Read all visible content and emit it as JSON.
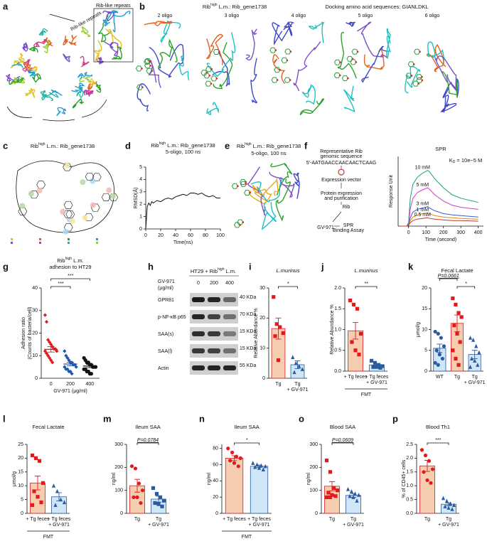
{
  "panels": {
    "a": {
      "label": "a",
      "annotations": [
        "Rib-like repeats",
        "Rib-like repeats"
      ]
    },
    "b": {
      "label": "b",
      "title": {
        "base": "Rib",
        "sup": "high",
        "rest": " L.m.: Rib_gene1738"
      },
      "subtitle": "Docking amino acid sequences: GIANLDKL",
      "structures": [
        "2 oligo",
        "3 oligo",
        "4 oligo",
        "5 oligo",
        "6 oligo"
      ]
    },
    "c": {
      "label": "c",
      "title": {
        "base": "Rib",
        "sup": "high",
        "rest": " L.m.: Rib_gene1738"
      }
    },
    "e": {
      "label": "e",
      "title": {
        "base": "Rib",
        "sup": "high",
        "rest": " L.m.: Rib_gene1738"
      },
      "subtitle": "5-oligo, 100 ns"
    },
    "f": {
      "label": "f",
      "steps": [
        "Representative Rib",
        "genomic sequence",
        "5'-AATGAACCAACAACTCAAG",
        "Expression vector",
        "Protein expression",
        "and purification",
        "Rib",
        "GV-971",
        "SPR",
        "Binding Assay"
      ]
    },
    "h": {
      "label": "h",
      "treatment": "GV-971",
      "unit": "(μg/ml)",
      "header": {
        "base": "HT29 + Rib",
        "sup": "high",
        "rest": " L.m."
      },
      "lanes": [
        "0",
        "200",
        "400"
      ],
      "bands": [
        "GPR81",
        "p-NF-κB p65",
        "SAA(s)",
        "SAA(l)",
        "Actin"
      ],
      "sizes": [
        "40 KDa",
        "70 KDa",
        "15 KDa",
        "15 KDa",
        "55 KDa"
      ]
    }
  },
  "chart_data": [
    {
      "type": "line",
      "label": "d",
      "title": {
        "base": "Rib",
        "sup": "high",
        "rest": " L.m.: Rib_gene1738"
      },
      "subtitle": "5-oligo, 100 ns",
      "x": [
        0,
        2,
        4,
        6,
        8,
        10,
        15,
        20,
        25,
        30,
        35,
        40,
        45,
        50,
        55,
        60,
        65,
        70,
        75,
        80,
        85,
        90,
        95,
        100
      ],
      "series": [
        {
          "color": "#111111",
          "values": [
            0,
            1.8,
            2.1,
            1.9,
            2.2,
            2.1,
            2.3,
            2.2,
            2.4,
            2.5,
            2.4,
            2.6,
            2.7,
            2.8,
            2.7,
            2.9,
            2.9,
            2.8,
            2.9,
            2.7,
            2.6,
            2.7,
            2.5,
            2.5
          ]
        }
      ],
      "xlim": [
        0,
        100
      ],
      "xticks": [
        0,
        20,
        40,
        60,
        80,
        100
      ],
      "ylim": [
        0,
        5
      ],
      "yticks": [
        0,
        1,
        2,
        3,
        4,
        5
      ],
      "xlabel": "Time(ns)",
      "ylabel": "RMSD(Å)"
    },
    {
      "type": "line",
      "title": "SPR",
      "kd": {
        "base": "K",
        "sub": "D",
        "rest": " = 10e−5 M"
      },
      "x": [
        -50,
        -10,
        0,
        10,
        25,
        50,
        80,
        110,
        120,
        150,
        200,
        250,
        300,
        400
      ],
      "series": [
        {
          "name": "10 mM",
          "color": "#1b9e77",
          "values": [
            0,
            0,
            5,
            40,
            60,
            70,
            76,
            80,
            78,
            68,
            55,
            45,
            40,
            34
          ]
        },
        {
          "name": "5 mM",
          "color": "#d03fbf",
          "values": [
            0,
            0,
            3,
            25,
            40,
            48,
            52,
            55,
            53,
            45,
            36,
            30,
            27,
            24
          ]
        },
        {
          "name": "3 mM",
          "color": "#3b5bdb",
          "values": [
            0,
            0,
            2,
            12,
            20,
            24,
            26,
            28,
            26,
            22,
            18,
            16,
            15,
            13
          ]
        },
        {
          "name": "1 mM",
          "color": "#e08a00",
          "values": [
            0,
            0,
            1,
            8,
            13,
            16,
            18,
            19,
            18,
            15,
            13,
            12,
            11,
            10
          ]
        },
        {
          "name": "0.5 mM",
          "color": "#c0392b",
          "values": [
            0,
            0,
            1,
            5,
            8,
            10,
            11,
            12,
            11,
            10,
            9,
            8,
            8,
            7
          ]
        }
      ],
      "xlim": [
        -60,
        430
      ],
      "xticks": [
        0,
        100,
        200,
        300,
        400
      ],
      "ylim": [
        0,
        100
      ],
      "xlabel": "Time (second)",
      "ylabel": "Response Unit"
    },
    {
      "type": "dot",
      "label": "g",
      "title": {
        "base": "Rib",
        "sup": "high",
        "rest": " L.m."
      },
      "subtitle": "adhesion to HT29",
      "categories": [
        "0",
        "200",
        "400"
      ],
      "values": [
        12.8,
        6.3,
        5.4
      ],
      "errors": [
        1.2,
        0.8,
        0.7
      ],
      "points": [
        [
          28,
          25,
          17,
          16,
          15,
          14,
          13,
          13,
          12,
          12,
          11,
          10,
          9,
          8,
          7
        ],
        [
          12,
          10,
          9,
          8,
          7,
          7,
          6,
          6,
          5,
          5,
          4,
          4,
          3,
          3,
          2
        ],
        [
          9,
          8,
          7,
          7,
          6,
          6,
          5,
          5,
          5,
          4,
          4,
          3,
          3,
          2,
          2
        ]
      ],
      "point_colors": [
        "#e31a1c",
        "#2255aa",
        "#111111"
      ],
      "markers": [
        "diamond",
        "diamond",
        "circle"
      ],
      "ylim": [
        0,
        40
      ],
      "yticks": [
        0,
        10,
        20,
        30,
        40
      ],
      "xlabel": "GV-971 (μg/ml)",
      "ylabel": [
        "Adhesion ratio",
        "(Counts of bacteria/cell)"
      ],
      "significance": [
        "***",
        "***"
      ]
    },
    {
      "type": "bar",
      "label": "i",
      "title": "L.murinus",
      "ylabel": "Relative Abundance %",
      "categories": [
        [
          "Tg"
        ],
        [
          "Tg",
          "+ GV-971"
        ]
      ],
      "values": [
        16.5,
        4.5
      ],
      "errors": [
        3.5,
        1.3
      ],
      "points": [
        [
          27,
          18,
          17,
          15,
          14,
          6
        ],
        [
          7,
          5,
          4,
          3,
          2
        ]
      ],
      "colors": [
        "#f6cdb0",
        "#cfe6f7"
      ],
      "point_colors": [
        "#e31a1c",
        "#2c5aa0"
      ],
      "markers": [
        "square",
        "triangle"
      ],
      "ylim": [
        0,
        30
      ],
      "yticks": [
        0,
        10,
        20,
        30
      ],
      "significance": "*"
    },
    {
      "type": "bar",
      "label": "j",
      "title": "L.murinus",
      "ylabel": "Relative Abundance %",
      "categories": [
        [
          "+ Tg feces"
        ],
        [
          "+ Tg feces",
          "+ GV-971"
        ]
      ],
      "group_label": "FMT",
      "values": [
        0.97,
        0.15
      ],
      "errors": [
        0.2,
        0.03
      ],
      "points": [
        [
          1.7,
          1.6,
          1.5,
          0.9,
          0.7,
          0.5,
          0.4
        ],
        [
          0.25,
          0.2,
          0.15,
          0.12,
          0.1,
          0.1,
          0.08
        ]
      ],
      "colors": [
        "#f6cdb0",
        "#cfe6f7"
      ],
      "point_colors": [
        "#e31a1c",
        "#2c5aa0"
      ],
      "markers": [
        "square",
        "square"
      ],
      "ylim": [
        0,
        2
      ],
      "yticks": [
        {
          "value": 0,
          "label": "0.0"
        },
        0.5,
        {
          "value": 1,
          "label": "1.0"
        },
        1.5,
        {
          "value": 2,
          "label": "2.0"
        }
      ],
      "significance": "**"
    },
    {
      "type": "bar",
      "label": "k",
      "title": "Fecal Lactate",
      "ylabel": "μmol/g",
      "categories": [
        [
          "WT"
        ],
        [
          "Tg"
        ],
        [
          "Tg",
          "+ GV-971"
        ]
      ],
      "values": [
        5.5,
        11.5,
        4.0
      ],
      "errors": [
        1.0,
        2.0,
        1.0
      ],
      "points": [
        [
          9.5,
          9,
          8,
          6,
          5,
          4,
          3,
          2,
          1.5
        ],
        [
          17.5,
          16,
          14,
          13,
          11,
          9,
          7,
          5,
          3,
          1.5
        ],
        [
          8,
          7.5,
          6,
          4.5,
          3,
          2.5,
          1.5,
          1
        ]
      ],
      "colors": [
        "#cfe6f7",
        "#f6cdb0",
        "#cfe6f7"
      ],
      "point_colors": [
        "#2c5aa0",
        "#e31a1c",
        "#2c5aa0"
      ],
      "markers": [
        "circle",
        "square",
        "triangle"
      ],
      "ylim": [
        0,
        20
      ],
      "yticks": [
        0,
        5,
        10,
        15,
        20
      ],
      "significance": [
        "P=0.0661",
        "*"
      ]
    },
    {
      "type": "bar",
      "label": "l",
      "title": "Fecal Lactate",
      "ylabel": "μmol/g",
      "categories": [
        [
          "+ Tg feces"
        ],
        [
          "+ Tg feces",
          "+ GV-971"
        ]
      ],
      "group_label": "FMT",
      "values": [
        11,
        6
      ],
      "errors": [
        2.5,
        1.5
      ],
      "points": [
        [
          21,
          20,
          19,
          11,
          8,
          6,
          4,
          3
        ],
        [
          10,
          8,
          5,
          4,
          3
        ]
      ],
      "colors": [
        "#f6cdb0",
        "#cfe6f7"
      ],
      "point_colors": [
        "#e31a1c",
        "#2c5aa0"
      ],
      "markers": [
        "square",
        "triangle"
      ],
      "ylim": [
        0,
        25
      ],
      "yticks": [
        0,
        5,
        10,
        15,
        20,
        25
      ]
    },
    {
      "type": "bar",
      "label": "m",
      "title": "Ileum SAA",
      "ylabel": "ng/ml",
      "categories": [
        [
          "Tg"
        ],
        [
          "Tg",
          "+ GV-971"
        ]
      ],
      "values": [
        120,
        62
      ],
      "errors": [
        28,
        13
      ],
      "points": [
        [
          205,
          195,
          130,
          100,
          70,
          70,
          45
        ],
        [
          110,
          85,
          70,
          55,
          45,
          40,
          30
        ]
      ],
      "colors": [
        "#f6cdb0",
        "#cfe6f7"
      ],
      "point_colors": [
        "#e31a1c",
        "#2c5aa0"
      ],
      "markers": [
        "circle",
        "square"
      ],
      "ylim": [
        0,
        300
      ],
      "yticks": [
        0,
        100,
        200,
        300
      ],
      "significance": "P=0.0784"
    },
    {
      "type": "bar",
      "label": "n",
      "title": "Ileum SAA",
      "ylabel": "ng/ml",
      "categories": [
        [
          "+ Tg feces"
        ],
        [
          "+ Tg feces",
          "+ GV-971"
        ]
      ],
      "group_label": "FMT",
      "values": [
        68,
        58
      ],
      "errors": [
        3,
        1.5
      ],
      "points": [
        [
          80,
          75,
          70,
          68,
          65,
          62,
          58
        ],
        [
          62,
          60,
          59,
          58,
          57,
          56,
          54
        ]
      ],
      "colors": [
        "#f6cdb0",
        "#cfe6f7"
      ],
      "point_colors": [
        "#e31a1c",
        "#2c5aa0"
      ],
      "markers": [
        "circle",
        "triangle"
      ],
      "ylim": [
        0,
        85
      ],
      "yticks": [
        0,
        20,
        40,
        60,
        80
      ],
      "significance": "*"
    },
    {
      "type": "bar",
      "label": "o",
      "title": "Blood SAA",
      "ylabel": "ng/ml",
      "categories": [
        [
          "Tg"
        ],
        [
          "Tg",
          "+ GV-971"
        ]
      ],
      "values": [
        118,
        78
      ],
      "errors": [
        20,
        8
      ],
      "points": [
        [
          230,
          180,
          110,
          100,
          90,
          80,
          75,
          70,
          70
        ],
        [
          105,
          95,
          85,
          80,
          75,
          70,
          55
        ]
      ],
      "colors": [
        "#f6cdb0",
        "#cfe6f7"
      ],
      "point_colors": [
        "#e31a1c",
        "#2c5aa0"
      ],
      "markers": [
        "square",
        "triangle"
      ],
      "ylim": [
        0,
        300
      ],
      "yticks": [
        0,
        100,
        200,
        300
      ],
      "significance": "P=0.0609"
    },
    {
      "type": "bar",
      "label": "p",
      "title": "Blood Th1",
      "ylabel": "% of CD45+ cells",
      "categories": [
        [
          "Tg"
        ],
        [
          "Tg",
          "+ GV-971"
        ]
      ],
      "values": [
        1.72,
        0.33
      ],
      "errors": [
        0.2,
        0.05
      ],
      "points": [
        [
          2.3,
          2.1,
          1.9,
          1.6,
          1.5,
          1.2,
          1.1
        ],
        [
          0.55,
          0.45,
          0.35,
          0.3,
          0.25,
          0.2,
          0.15
        ]
      ],
      "colors": [
        "#f6cdb0",
        "#cfe6f7"
      ],
      "point_colors": [
        "#e31a1c",
        "#2c5aa0"
      ],
      "markers": [
        "circle",
        "triangle"
      ],
      "ylim": [
        0,
        2.5
      ],
      "yticks": [
        {
          "value": 0,
          "label": "0.0"
        },
        0.5,
        {
          "value": 1,
          "label": "1.0"
        },
        1.5,
        {
          "value": 2,
          "label": "2.0"
        },
        2.5
      ],
      "significance": "***"
    }
  ]
}
